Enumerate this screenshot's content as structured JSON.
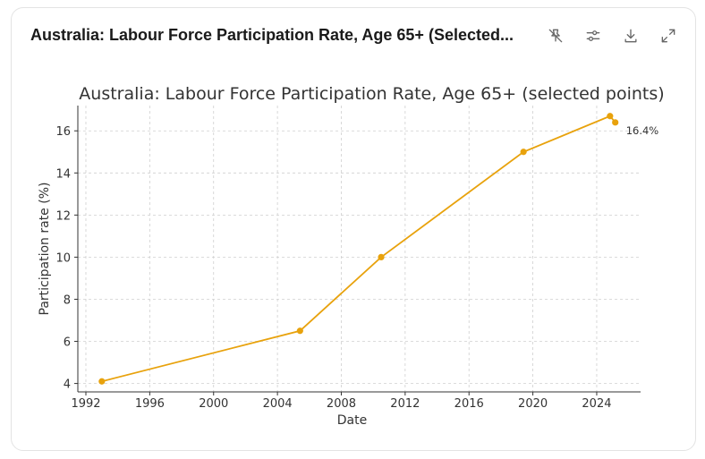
{
  "header": {
    "title": "Australia: Labour Force Participation Rate, Age 65+ (Selected..."
  },
  "toolbar": {
    "icons": [
      "pin-off-icon",
      "sliders-icon",
      "download-icon",
      "expand-icon"
    ]
  },
  "colors": {
    "series": "#E8A20C",
    "grid": "#cfcfcf",
    "axis": "#333333",
    "text": "#333333"
  },
  "chart_data": {
    "type": "line",
    "title": "Australia: Labour Force Participation Rate, Age 65+ (selected points)",
    "xlabel": "Date",
    "ylabel": "Participation rate (%)",
    "x_tick_labels": [
      "1992",
      "1996",
      "2000",
      "2004",
      "2008",
      "2012",
      "2016",
      "2020",
      "2024"
    ],
    "y_tick_labels": [
      "4",
      "6",
      "8",
      "10",
      "12",
      "14",
      "16"
    ],
    "y_ticks": [
      4,
      6,
      8,
      10,
      12,
      14,
      16
    ],
    "xlim": [
      "1991-07-01",
      "2026-10-01"
    ],
    "ylim": [
      3.6,
      17.2
    ],
    "grid": true,
    "series": [
      {
        "x": [
          "1993-01-01",
          "2005-06-01",
          "2010-07-01",
          "2019-06-01",
          "2024-11-01",
          "2025-03-01"
        ],
        "y": [
          4.1,
          6.5,
          10.0,
          15.0,
          16.7,
          16.4
        ]
      }
    ],
    "annotations": [
      {
        "text": "16.4%",
        "x": "2025-03-01",
        "y": 16.4
      }
    ]
  }
}
